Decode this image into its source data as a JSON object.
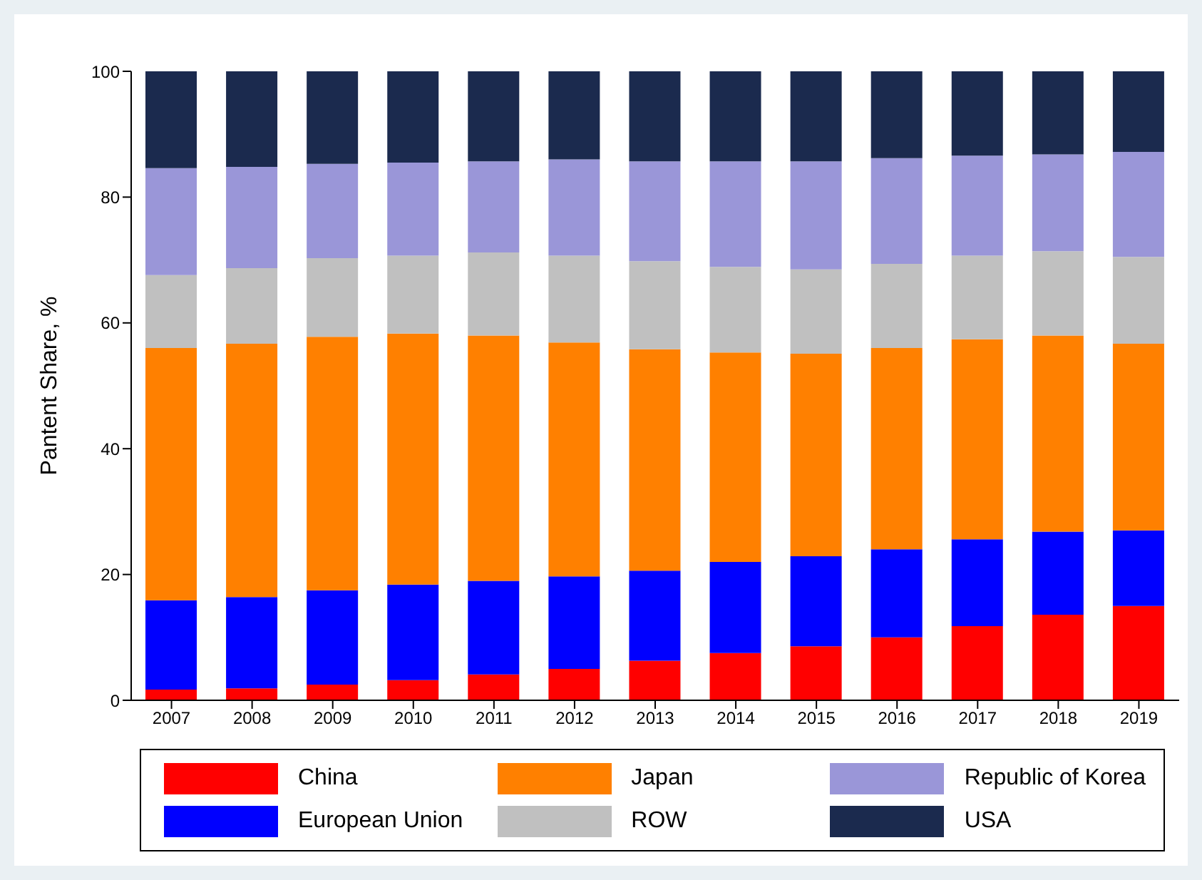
{
  "chart_data": {
    "type": "bar",
    "stacked": true,
    "ylabel": "Pantent Share, %",
    "categories": [
      "2007",
      "2008",
      "2009",
      "2010",
      "2011",
      "2012",
      "2013",
      "2014",
      "2015",
      "2016",
      "2017",
      "2018",
      "2019"
    ],
    "ylim": [
      0,
      100
    ],
    "yticks": [
      0,
      20,
      40,
      60,
      80,
      100
    ],
    "legend": "bottom",
    "series": [
      {
        "name": "China",
        "color": "#ff0000",
        "values": [
          1.7,
          1.9,
          2.5,
          3.2,
          4.1,
          5.0,
          6.3,
          7.5,
          8.6,
          10.0,
          11.8,
          13.6,
          15.0
        ]
      },
      {
        "name": "European Union",
        "color": "#0000ff",
        "values": [
          14.2,
          14.5,
          15.0,
          15.2,
          14.9,
          14.7,
          14.3,
          14.5,
          14.3,
          14.0,
          13.8,
          13.2,
          12.0
        ]
      },
      {
        "name": "Japan",
        "color": "#ff8000",
        "values": [
          40.1,
          40.3,
          40.3,
          39.9,
          39.0,
          37.2,
          35.2,
          33.3,
          32.2,
          32.0,
          31.8,
          31.2,
          29.7
        ]
      },
      {
        "name": "ROW",
        "color": "#c0c0c0",
        "values": [
          11.6,
          12.0,
          12.5,
          12.4,
          13.2,
          13.8,
          14.0,
          13.6,
          13.4,
          13.4,
          13.3,
          13.4,
          13.8
        ]
      },
      {
        "name": "Republic of Korea",
        "color": "#9a96d8",
        "values": [
          17.0,
          16.1,
          15.0,
          14.8,
          14.5,
          15.3,
          15.9,
          16.8,
          17.2,
          16.8,
          15.9,
          15.4,
          16.7
        ]
      },
      {
        "name": "USA",
        "color": "#1b2a4e",
        "values": [
          15.4,
          15.2,
          14.7,
          14.5,
          14.3,
          14.0,
          14.3,
          14.3,
          14.3,
          13.8,
          13.4,
          13.2,
          12.8
        ]
      }
    ]
  }
}
